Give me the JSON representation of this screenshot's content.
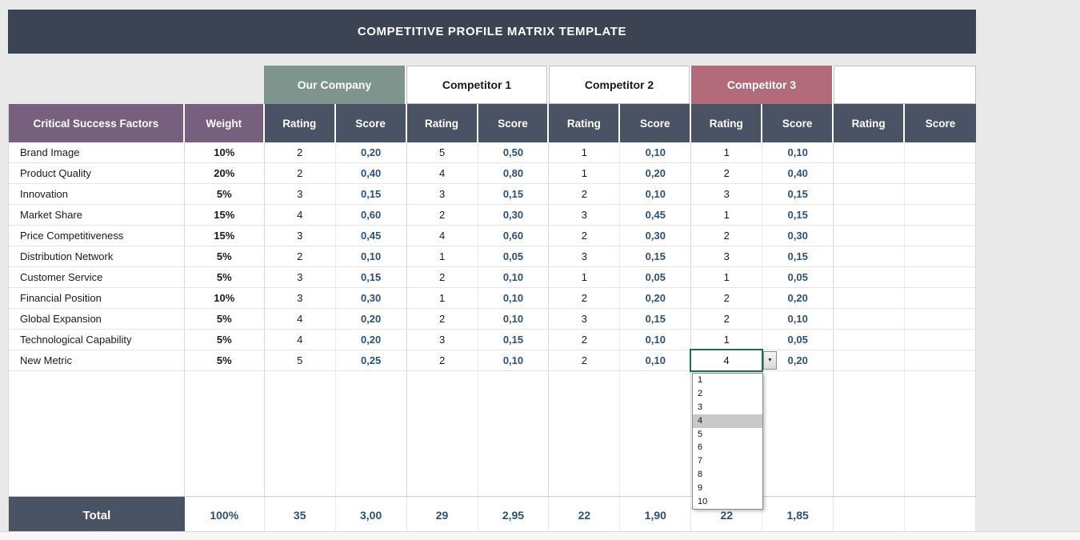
{
  "title": "COMPETITIVE PROFILE MATRIX TEMPLATE",
  "colors": {
    "title_bg": "#3c4454",
    "header_bg": "#4a5363",
    "factors_header_bg": "#77607e",
    "our_company_bg": "#7e948d",
    "competitor3_bg": "#b26b7b",
    "score_text": "#2e5073",
    "selection_border": "#1e7145"
  },
  "company_header": [
    "Our Company",
    "Competitor 1",
    "Competitor 2",
    "Competitor 3",
    ""
  ],
  "column_headers": {
    "factors": "Critical Success Factors",
    "weight": "Weight",
    "rating": "Rating",
    "score": "Score"
  },
  "rows": [
    {
      "factor": "Brand Image",
      "weight": "10%",
      "values": [
        "2",
        "0,20",
        "5",
        "0,50",
        "1",
        "0,10",
        "1",
        "0,10",
        "",
        ""
      ]
    },
    {
      "factor": "Product Quality",
      "weight": "20%",
      "values": [
        "2",
        "0,40",
        "4",
        "0,80",
        "1",
        "0,20",
        "2",
        "0,40",
        "",
        ""
      ]
    },
    {
      "factor": "Innovation",
      "weight": "5%",
      "values": [
        "3",
        "0,15",
        "3",
        "0,15",
        "2",
        "0,10",
        "3",
        "0,15",
        "",
        ""
      ]
    },
    {
      "factor": "Market Share",
      "weight": "15%",
      "values": [
        "4",
        "0,60",
        "2",
        "0,30",
        "3",
        "0,45",
        "1",
        "0,15",
        "",
        ""
      ]
    },
    {
      "factor": "Price Competitiveness",
      "weight": "15%",
      "values": [
        "3",
        "0,45",
        "4",
        "0,60",
        "2",
        "0,30",
        "2",
        "0,30",
        "",
        ""
      ]
    },
    {
      "factor": "Distribution Network",
      "weight": "5%",
      "values": [
        "2",
        "0,10",
        "1",
        "0,05",
        "3",
        "0,15",
        "3",
        "0,15",
        "",
        ""
      ]
    },
    {
      "factor": "Customer Service",
      "weight": "5%",
      "values": [
        "3",
        "0,15",
        "2",
        "0,10",
        "1",
        "0,05",
        "1",
        "0,05",
        "",
        ""
      ]
    },
    {
      "factor": "Financial Position",
      "weight": "10%",
      "values": [
        "3",
        "0,30",
        "1",
        "0,10",
        "2",
        "0,20",
        "2",
        "0,20",
        "",
        ""
      ]
    },
    {
      "factor": "Global Expansion",
      "weight": "5%",
      "values": [
        "4",
        "0,20",
        "2",
        "0,10",
        "3",
        "0,15",
        "2",
        "0,10",
        "",
        ""
      ]
    },
    {
      "factor": "Technological Capability",
      "weight": "5%",
      "values": [
        "4",
        "0,20",
        "3",
        "0,15",
        "2",
        "0,10",
        "1",
        "0,05",
        "",
        ""
      ]
    },
    {
      "factor": "New Metric",
      "weight": "5%",
      "values": [
        "5",
        "0,25",
        "2",
        "0,10",
        "2",
        "0,10",
        "4",
        "0,20",
        "",
        ""
      ]
    }
  ],
  "empty_row_count": 6,
  "total": {
    "label": "Total",
    "weight": "100%",
    "values": [
      "35",
      "3,00",
      "29",
      "2,95",
      "22",
      "1,90",
      "22",
      "1,85",
      "",
      ""
    ]
  },
  "dropdown": {
    "cell_value": "4",
    "selected_option": "4",
    "options": [
      "1",
      "2",
      "3",
      "4",
      "5",
      "6",
      "7",
      "8",
      "9",
      "10"
    ]
  },
  "icons": {
    "dropdown_arrow": "▼"
  }
}
